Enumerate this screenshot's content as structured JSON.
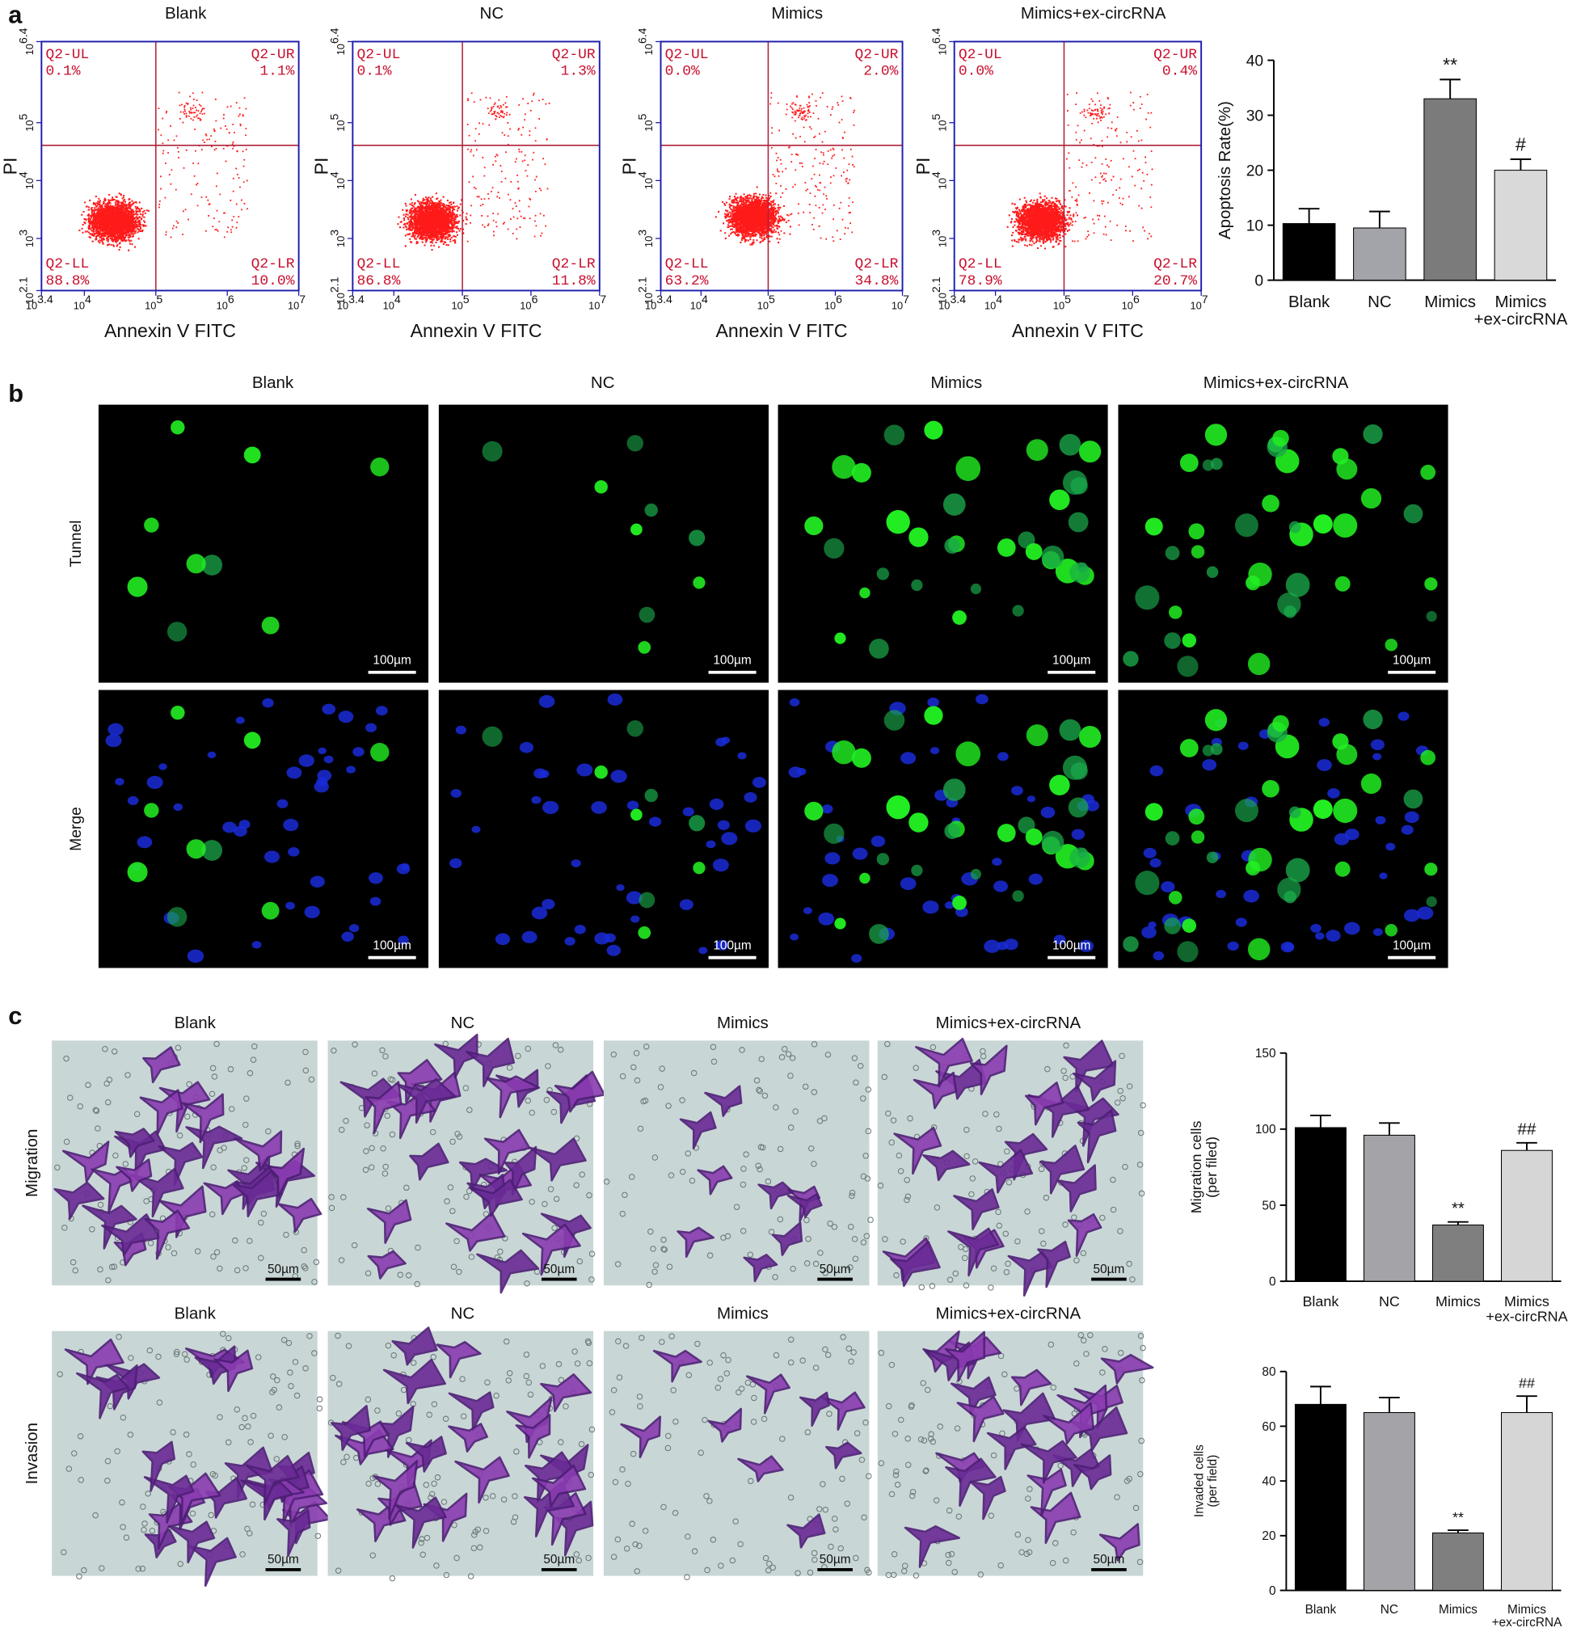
{
  "panel_labels": [
    "a",
    "b",
    "c"
  ],
  "flow": {
    "x_label": "Annexin V FITC",
    "y_label": "PI",
    "axis_base": "10",
    "x_exponents": [
      "3.4",
      "4",
      "5",
      "6",
      "7"
    ],
    "y_exponents": [
      "2.1",
      "3",
      "4",
      "5",
      "6.4"
    ],
    "panels": [
      {
        "title": "Blank",
        "quadrants": [
          {
            "name": "Q2-UL",
            "percent": "0.1%"
          },
          {
            "name": "Q2-UR",
            "percent": "1.1%"
          },
          {
            "name": "Q2-LL",
            "percent": "88.8%"
          },
          {
            "name": "Q2-LR",
            "percent": "10.0%"
          }
        ]
      },
      {
        "title": "NC",
        "quadrants": [
          {
            "name": "Q2-UL",
            "percent": "0.1%"
          },
          {
            "name": "Q2-UR",
            "percent": "1.3%"
          },
          {
            "name": "Q2-LL",
            "percent": "86.8%"
          },
          {
            "name": "Q2-LR",
            "percent": "11.8%"
          }
        ]
      },
      {
        "title": "Mimics",
        "quadrants": [
          {
            "name": "Q2-UL",
            "percent": "0.0%"
          },
          {
            "name": "Q2-UR",
            "percent": "2.0%"
          },
          {
            "name": "Q2-LL",
            "percent": "63.2%"
          },
          {
            "name": "Q2-LR",
            "percent": "34.8%"
          }
        ]
      },
      {
        "title": "Mimics+ex-circRNA",
        "quadrants": [
          {
            "name": "Q2-UL",
            "percent": "0.0%"
          },
          {
            "name": "Q2-UR",
            "percent": "0.4%"
          },
          {
            "name": "Q2-LL",
            "percent": "78.9%"
          },
          {
            "name": "Q2-LR",
            "percent": "20.7%"
          }
        ]
      }
    ]
  },
  "tunel": {
    "columns": [
      "Blank",
      "NC",
      "Mimics",
      "Mimics+ex-circRNA"
    ],
    "rows": [
      "Tunnel",
      "Merge"
    ],
    "scale_bar": "100µm"
  },
  "transwell": {
    "rows": [
      {
        "label": "Migration",
        "columns": [
          "Blank",
          "NC",
          "Mimics",
          "Mimics+ex-circRNA"
        ]
      },
      {
        "label": "Invasion",
        "columns": [
          "Blank",
          "NC",
          "Mimics",
          "Mimics+ex-circRNA"
        ]
      }
    ],
    "scale_bar": "50µm"
  },
  "chart_data": [
    {
      "type": "bar",
      "y_label": "Apoptosis Rate(%)",
      "categories": [
        "Blank",
        "NC",
        "Mimics",
        "Mimics\n+ex-circRNA"
      ],
      "values": [
        10.3,
        9.5,
        33,
        20
      ],
      "errors": [
        2.7,
        3,
        3.5,
        2
      ],
      "annotations": [
        null,
        null,
        "**",
        "#"
      ],
      "colors": [
        "#000000",
        "#a3a3aa",
        "#7b7b7b",
        "#d9d9d9"
      ],
      "ylim": [
        0,
        40
      ],
      "yticks": [
        0,
        10,
        20,
        30,
        40
      ]
    },
    {
      "type": "bar",
      "y_label": "Migration cells\n(per filed)",
      "categories": [
        "Blank",
        "NC",
        "Mimics",
        "Mimics\n+ex-circRNA"
      ],
      "values": [
        101,
        96,
        37,
        86
      ],
      "errors": [
        8,
        8,
        2,
        5
      ],
      "annotations": [
        null,
        null,
        "**",
        "##"
      ],
      "colors": [
        "#000000",
        "#a3a3a8",
        "#7f7f7f",
        "#d6d6d6"
      ],
      "ylim": [
        0,
        150
      ],
      "yticks": [
        0,
        50,
        100,
        150
      ]
    },
    {
      "type": "bar",
      "y_label": "Invaded cells\n(per field)",
      "categories": [
        "Blank",
        "NC",
        "Mimics",
        "Mimics\n+ex-circRNA"
      ],
      "values": [
        68,
        65,
        21,
        65
      ],
      "errors": [
        6.5,
        5.5,
        1,
        6
      ],
      "annotations": [
        null,
        null,
        "**",
        "##"
      ],
      "colors": [
        "#000000",
        "#a3a3a8",
        "#7f7f7f",
        "#d6d6d6"
      ],
      "ylim": [
        0,
        80
      ],
      "yticks": [
        0,
        20,
        40,
        60,
        80
      ]
    }
  ]
}
